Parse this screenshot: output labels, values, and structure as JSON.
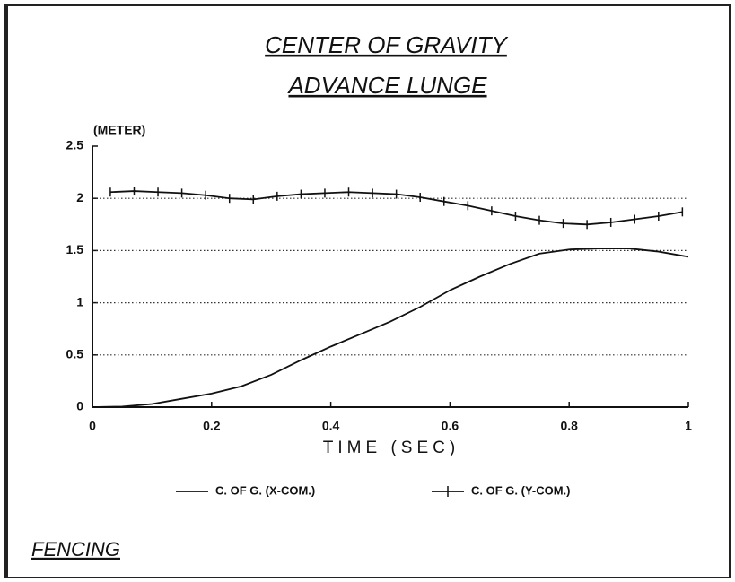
{
  "chart_data": {
    "type": "line",
    "title": "CENTER OF GRAVITY",
    "subtitle": "ADVANCE LUNGE",
    "ylabel": "(METER)",
    "xlabel": "TIME (SEC)",
    "xlim": [
      0,
      1
    ],
    "xticks": [
      0,
      0.2,
      0.4,
      0.6,
      0.8,
      1
    ],
    "ylim": [
      0,
      2.5
    ],
    "yticks": [
      0,
      0.5,
      1,
      1.5,
      2,
      2.5
    ],
    "grid": true,
    "legend": "bottom",
    "series": [
      {
        "name": "C. OF G. (X-COM.)",
        "color": "#111111",
        "marker": "none",
        "x": [
          0,
          0.05,
          0.1,
          0.15,
          0.2,
          0.25,
          0.3,
          0.35,
          0.4,
          0.45,
          0.5,
          0.55,
          0.6,
          0.65,
          0.7,
          0.75,
          0.8,
          0.85,
          0.9,
          0.95,
          1
        ],
        "values": [
          0,
          0.005,
          0.03,
          0.08,
          0.13,
          0.2,
          0.31,
          0.45,
          0.58,
          0.7,
          0.82,
          0.96,
          1.12,
          1.25,
          1.37,
          1.47,
          1.51,
          1.52,
          1.52,
          1.49,
          1.44
        ]
      },
      {
        "name": "C. OF G. (Y-COM.)",
        "color": "#111111",
        "marker": "tick",
        "x": [
          0.03,
          0.07,
          0.11,
          0.15,
          0.19,
          0.23,
          0.27,
          0.31,
          0.35,
          0.39,
          0.43,
          0.47,
          0.51,
          0.55,
          0.59,
          0.63,
          0.67,
          0.71,
          0.75,
          0.79,
          0.83,
          0.87,
          0.91,
          0.95,
          0.99
        ],
        "values": [
          2.06,
          2.07,
          2.06,
          2.05,
          2.03,
          2.0,
          1.99,
          2.02,
          2.04,
          2.05,
          2.06,
          2.05,
          2.04,
          2.01,
          1.97,
          1.93,
          1.88,
          1.83,
          1.79,
          1.76,
          1.75,
          1.77,
          1.8,
          1.83,
          1.87
        ]
      }
    ]
  },
  "footer": "FENCING"
}
